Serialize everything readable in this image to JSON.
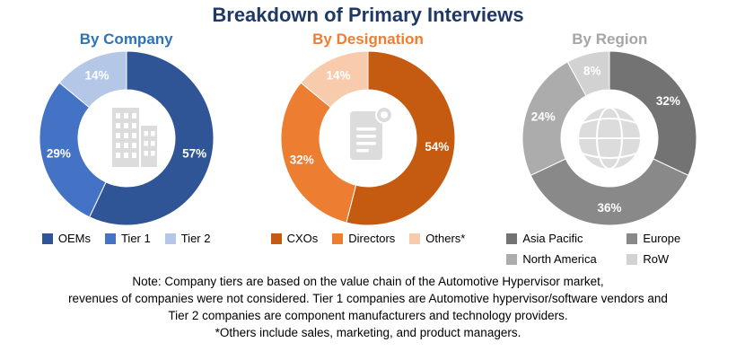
{
  "title": "Breakdown of Primary Interviews",
  "title_color": "#1F3864",
  "chart_data": [
    {
      "type": "pie",
      "title": "By Company",
      "title_color": "#2E74B5",
      "center_icon": "building-icon",
      "legend_position": "bottom",
      "labels": [
        "OEMs",
        "Tier 1",
        "Tier 2"
      ],
      "values": [
        57,
        29,
        14
      ],
      "value_suffix": "%",
      "colors": [
        "#2F5597",
        "#4472C4",
        "#B4C7E7"
      ]
    },
    {
      "type": "pie",
      "title": "By Designation",
      "title_color": "#ED7D31",
      "center_icon": "document-icon",
      "legend_position": "bottom",
      "labels": [
        "CXOs",
        "Directors",
        "Others*"
      ],
      "values": [
        54,
        32,
        14
      ],
      "value_suffix": "%",
      "colors": [
        "#C55A11",
        "#ED7D31",
        "#F8CBAD"
      ]
    },
    {
      "type": "pie",
      "title": "By Region",
      "title_color": "#A6A6A6",
      "center_icon": "globe-icon",
      "legend_position": "bottom",
      "labels": [
        "Asia Pacific",
        "Europe",
        "North America",
        "RoW"
      ],
      "values": [
        32,
        36,
        24,
        8
      ],
      "value_suffix": "%",
      "colors": [
        "#737373",
        "#898989",
        "#ACACAC",
        "#D2D2D2"
      ]
    }
  ],
  "note_lines": [
    "Note: Company tiers are based on the value chain of the Automotive Hypervisor market,",
    "revenues of companies were not considered. Tier 1 companies are Automotive hypervisor/software vendors and",
    "Tier 2 companies are component manufacturers and technology providers.",
    "*Others include sales, marketing, and product managers."
  ]
}
